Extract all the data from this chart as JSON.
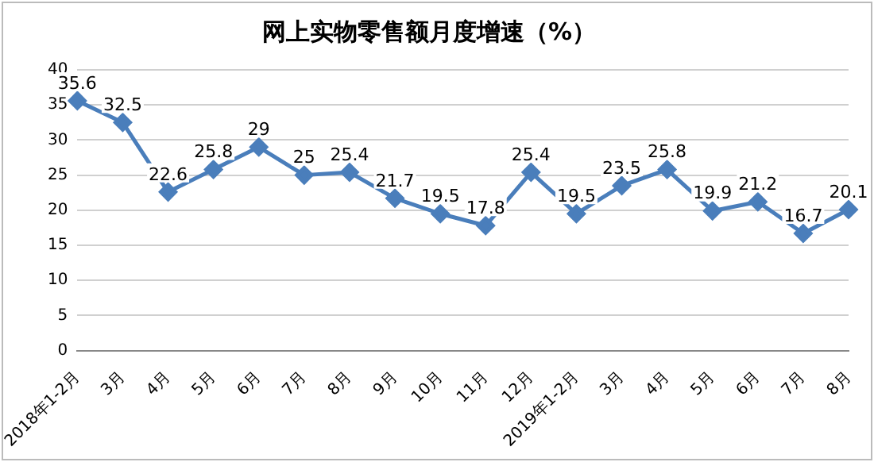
{
  "chart_data": {
    "type": "line",
    "title": "网上实物零售额月度增速（%）",
    "categories": [
      "2018年1-2月",
      "3月",
      "4月",
      "5月",
      "6月",
      "7月",
      "8月",
      "9月",
      "10月",
      "11月",
      "12月",
      "2019年1-2月",
      "3月",
      "4月",
      "5月",
      "6月",
      "7月",
      "8月"
    ],
    "values": [
      35.6,
      32.5,
      22.6,
      25.8,
      29,
      25,
      25.4,
      21.7,
      19.5,
      17.8,
      25.4,
      19.5,
      23.5,
      25.8,
      19.9,
      21.2,
      16.7,
      20.1
    ],
    "color": "#4a7ebb",
    "ylim": [
      0,
      40
    ],
    "yticks": [
      0,
      5,
      10,
      15,
      20,
      25,
      30,
      35,
      40
    ],
    "grid": "y",
    "legend": false,
    "marker": "diamond",
    "line_style": "solid",
    "data_labels": true
  }
}
